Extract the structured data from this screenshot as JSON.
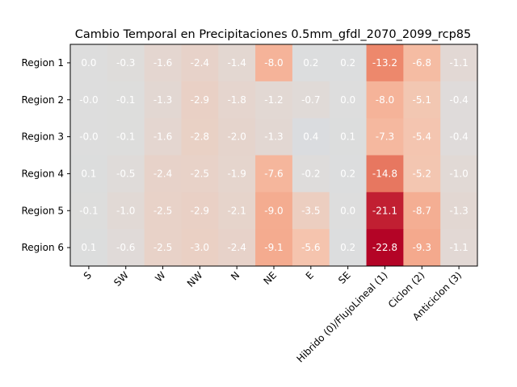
{
  "chart_data": {
    "type": "heatmap",
    "title": "Cambio Temporal en Precipitaciones 0.5mm_gfdl_2070_2099_rcp85",
    "xlabel": "",
    "ylabel": "",
    "colormap": "coolwarm",
    "color_range": [
      -22.8,
      22.8
    ],
    "x_categories": [
      "S",
      "SW",
      "W",
      "NW",
      "N",
      "NE",
      "E",
      "SE",
      "Hibrido (0)/FlujoLineal (1)",
      "Ciclon (2)",
      "Anticiclon (3)"
    ],
    "y_categories": [
      "Region 1",
      "Region 2",
      "Region 3",
      "Region 4",
      "Region 5",
      "Region 6"
    ],
    "values": [
      [
        0.0,
        -0.3,
        -1.6,
        -2.4,
        -1.4,
        -8.0,
        0.2,
        0.2,
        -13.2,
        -6.8,
        -1.1
      ],
      [
        -0.0,
        -0.1,
        -1.3,
        -2.9,
        -1.8,
        -1.2,
        -0.7,
        0.0,
        -8.0,
        -5.1,
        -0.4
      ],
      [
        -0.0,
        -0.1,
        -1.6,
        -2.8,
        -2.0,
        -1.3,
        0.4,
        0.1,
        -7.3,
        -5.4,
        -0.4
      ],
      [
        0.1,
        -0.5,
        -2.4,
        -2.5,
        -1.9,
        -7.6,
        -0.2,
        0.2,
        -14.8,
        -5.2,
        -1.0
      ],
      [
        -0.1,
        -1.0,
        -2.5,
        -2.9,
        -2.1,
        -9.0,
        -3.5,
        0.0,
        -21.1,
        -8.7,
        -1.3
      ],
      [
        0.1,
        -0.6,
        -2.5,
        -3.0,
        -2.4,
        -9.1,
        -5.6,
        0.2,
        -22.8,
        -9.3,
        -1.1
      ]
    ],
    "value_labels": [
      [
        "0.0",
        "-0.3",
        "-1.6",
        "-2.4",
        "-1.4",
        "-8.0",
        "0.2",
        "0.2",
        "-13.2",
        "-6.8",
        "-1.1"
      ],
      [
        "-0.0",
        "-0.1",
        "-1.3",
        "-2.9",
        "-1.8",
        "-1.2",
        "-0.7",
        "0.0",
        "-8.0",
        "-5.1",
        "-0.4"
      ],
      [
        "-0.0",
        "-0.1",
        "-1.6",
        "-2.8",
        "-2.0",
        "-1.3",
        "0.4",
        "0.1",
        "-7.3",
        "-5.4",
        "-0.4"
      ],
      [
        "0.1",
        "-0.5",
        "-2.4",
        "-2.5",
        "-1.9",
        "-7.6",
        "-0.2",
        "0.2",
        "-14.8",
        "-5.2",
        "-1.0"
      ],
      [
        "-0.1",
        "-1.0",
        "-2.5",
        "-2.9",
        "-2.1",
        "-9.0",
        "-3.5",
        "0.0",
        "-21.1",
        "-8.7",
        "-1.3"
      ],
      [
        "0.1",
        "-0.6",
        "-2.5",
        "-3.0",
        "-2.4",
        "-9.1",
        "-5.6",
        "0.2",
        "-22.8",
        "-9.3",
        "-1.1"
      ]
    ],
    "grid": false,
    "legend": "none"
  }
}
